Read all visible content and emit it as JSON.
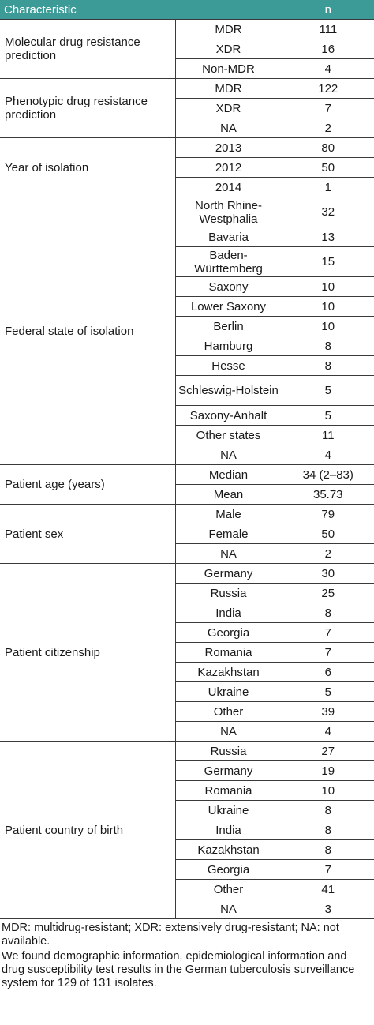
{
  "header": {
    "characteristic": "Characteristic",
    "n": "n"
  },
  "groups": [
    {
      "label": "Molecular drug resistance prediction",
      "rows": [
        {
          "category": "MDR",
          "n": "111"
        },
        {
          "category": "XDR",
          "n": "16"
        },
        {
          "category": "Non-MDR",
          "n": "4"
        }
      ]
    },
    {
      "label": "Phenotypic drug resistance prediction",
      "rows": [
        {
          "category": "MDR",
          "n": "122"
        },
        {
          "category": "XDR",
          "n": "7"
        },
        {
          "category": "NA",
          "n": "2"
        }
      ]
    },
    {
      "label": "Year of isolation",
      "rows": [
        {
          "category": "2013",
          "n": "80"
        },
        {
          "category": "2012",
          "n": "50"
        },
        {
          "category": "2014",
          "n": "1"
        }
      ]
    },
    {
      "label": "Federal state of isolation",
      "rows": [
        {
          "category": "North Rhine-Westphalia",
          "n": "32",
          "tall": true
        },
        {
          "category": "Bavaria",
          "n": "13"
        },
        {
          "category": "Baden-Württemberg",
          "n": "15",
          "tall": true
        },
        {
          "category": "Saxony",
          "n": "10"
        },
        {
          "category": "Lower Saxony",
          "n": "10"
        },
        {
          "category": "Berlin",
          "n": "10"
        },
        {
          "category": "Hamburg",
          "n": "8"
        },
        {
          "category": "Hesse",
          "n": "8"
        },
        {
          "category": "Schleswig-Holstein",
          "n": "5",
          "tall": true
        },
        {
          "category": "Saxony-Anhalt",
          "n": "5"
        },
        {
          "category": "Other states",
          "n": "11"
        },
        {
          "category": "NA",
          "n": "4"
        }
      ]
    },
    {
      "label": "Patient age (years)",
      "rows": [
        {
          "category": "Median",
          "n": "34 (2–83)"
        },
        {
          "category": "Mean",
          "n": "35.73"
        }
      ]
    },
    {
      "label": "Patient sex",
      "rows": [
        {
          "category": "Male",
          "n": "79"
        },
        {
          "category": "Female",
          "n": "50"
        },
        {
          "category": "NA",
          "n": "2"
        }
      ]
    },
    {
      "label": "Patient citizenship",
      "rows": [
        {
          "category": "Germany",
          "n": "30"
        },
        {
          "category": "Russia",
          "n": "25"
        },
        {
          "category": "India",
          "n": "8"
        },
        {
          "category": "Georgia",
          "n": "7"
        },
        {
          "category": "Romania",
          "n": "7"
        },
        {
          "category": "Kazakhstan",
          "n": "6"
        },
        {
          "category": "Ukraine",
          "n": "5"
        },
        {
          "category": "Other",
          "n": "39"
        },
        {
          "category": "NA",
          "n": "4"
        }
      ]
    },
    {
      "label": "Patient country of birth",
      "rows": [
        {
          "category": "Russia",
          "n": "27"
        },
        {
          "category": "Germany",
          "n": "19"
        },
        {
          "category": "Romania",
          "n": "10"
        },
        {
          "category": "Ukraine",
          "n": "8"
        },
        {
          "category": "India",
          "n": "8"
        },
        {
          "category": "Kazakhstan",
          "n": "8"
        },
        {
          "category": "Georgia",
          "n": "7"
        },
        {
          "category": "Other",
          "n": "41"
        },
        {
          "category": "NA",
          "n": "3"
        }
      ]
    }
  ],
  "footnotes": [
    "MDR: multidrug-resistant; XDR: extensively drug-resistant; NA: not available.",
    "We found demographic information, epidemiological information and drug susceptibility test results in the German tuberculosis surveillance system for 129 of 131 isolates."
  ]
}
